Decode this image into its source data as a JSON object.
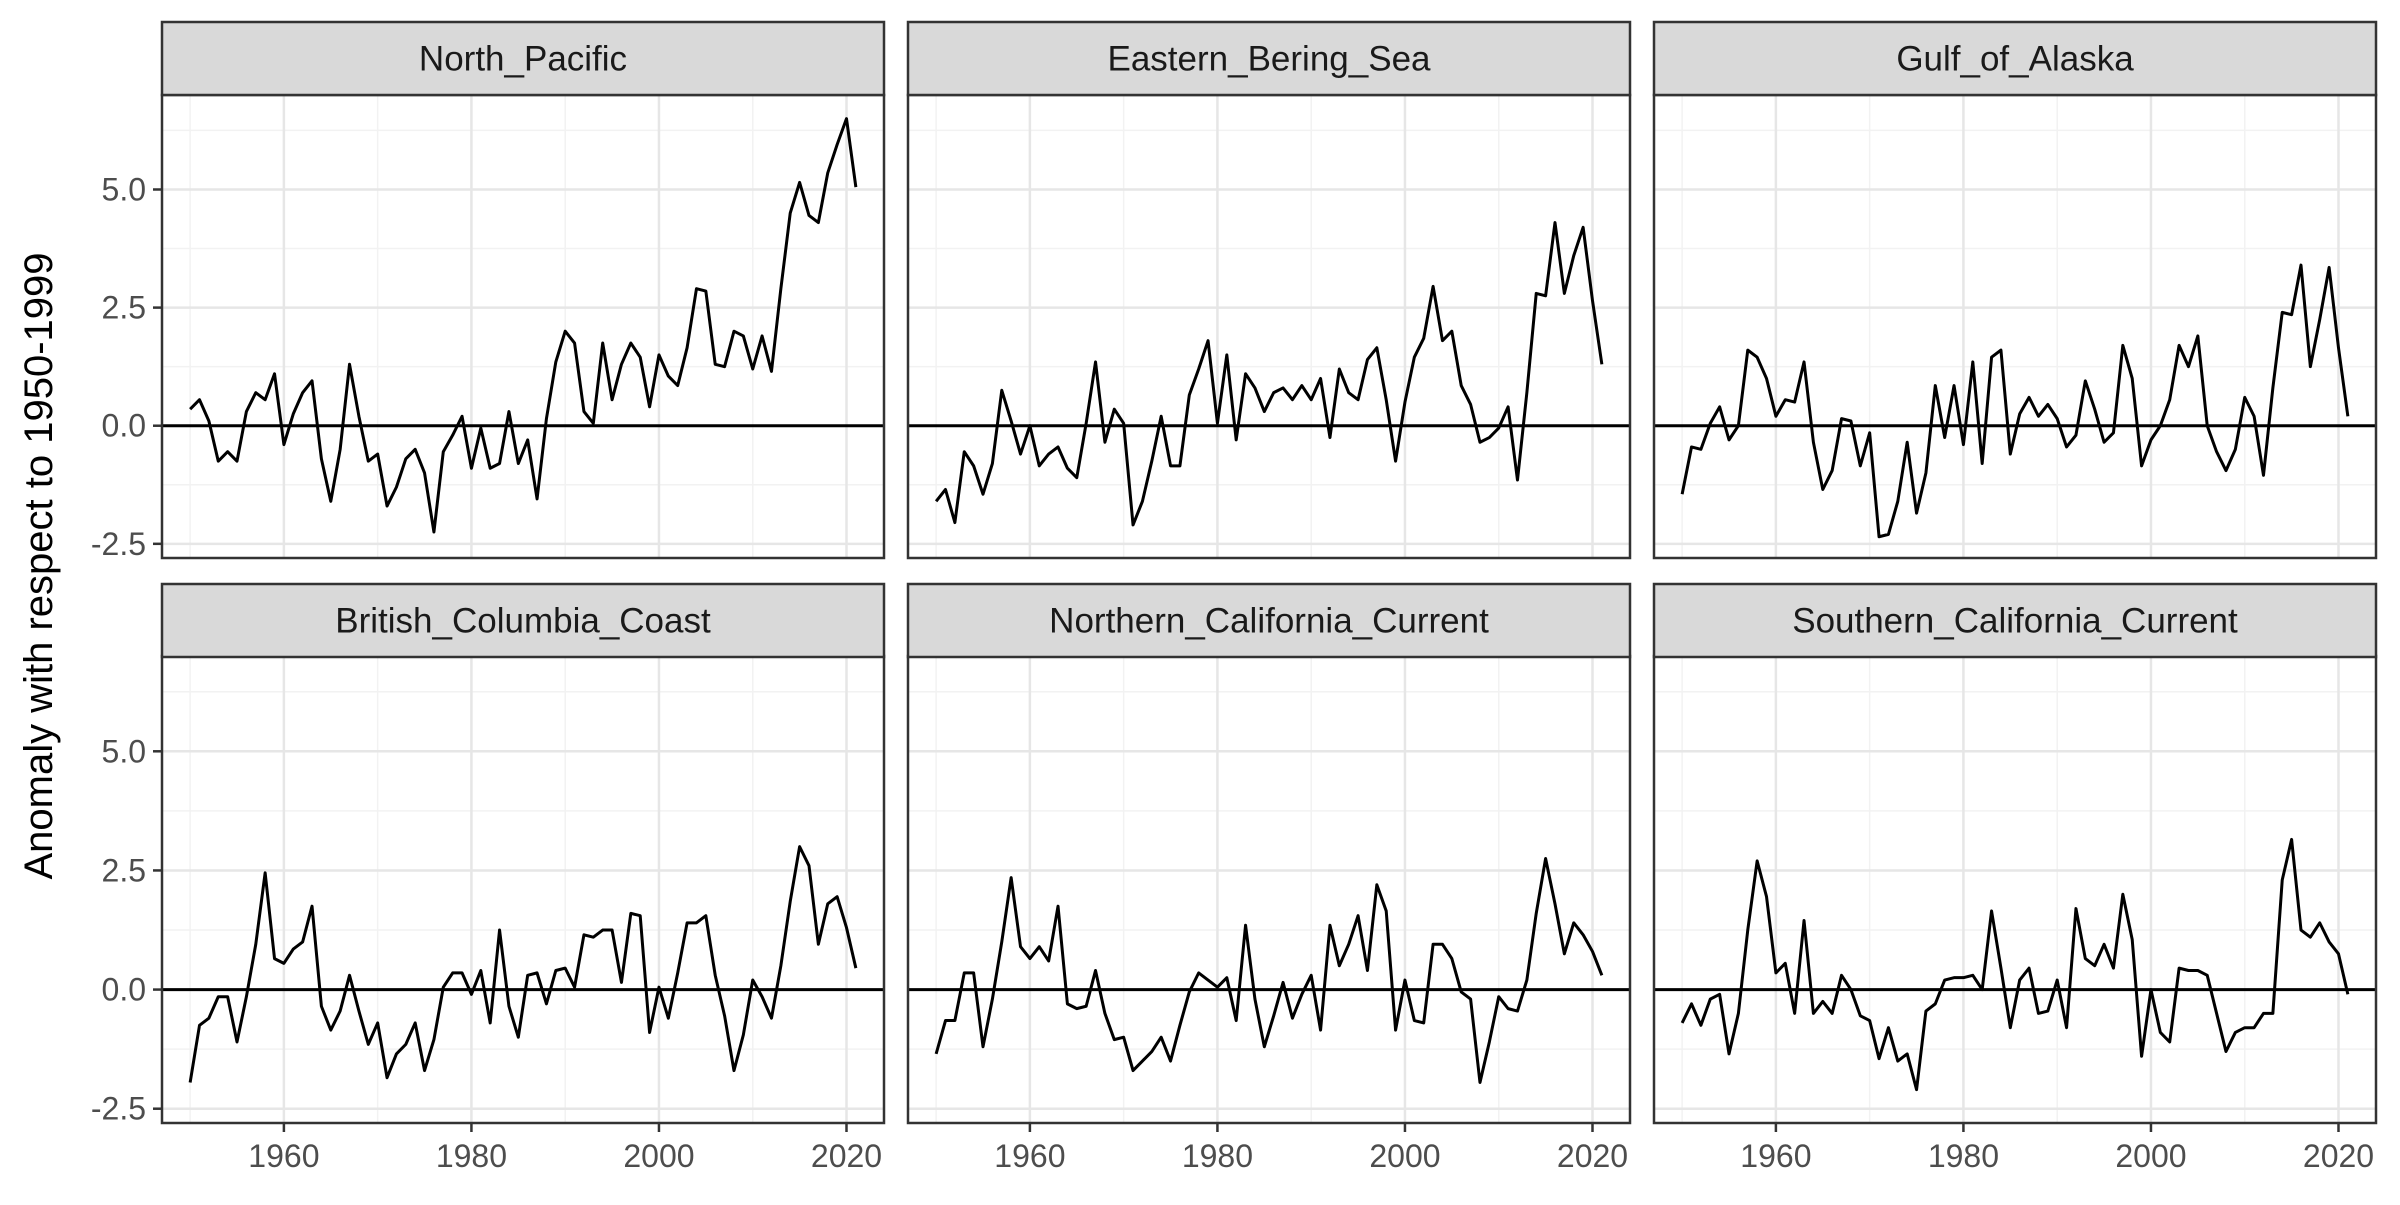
{
  "chart_data": {
    "type": "line",
    "layout": "facet-grid 2x3",
    "ylabel": "Anomaly with respect to 1950-1999",
    "xlabel": "",
    "xlim": [
      1947,
      2024
    ],
    "ylim": [
      -2.8,
      7.0
    ],
    "x_ticks": [
      1960,
      1980,
      2000,
      2020
    ],
    "y_ticks": [
      -2.5,
      0.0,
      2.5,
      5.0
    ],
    "y_tick_labels": [
      "-2.5",
      "0.0",
      "2.5",
      "5.0"
    ],
    "reference_line": 0,
    "grid": true,
    "line_color": "#000000",
    "strip_fill": "#d9d9d9",
    "x_start": 1950,
    "panels": [
      {
        "name": "North_Pacific",
        "values": [
          0.35,
          0.55,
          0.1,
          -0.75,
          -0.55,
          -0.75,
          0.3,
          0.7,
          0.55,
          1.1,
          -0.4,
          0.25,
          0.7,
          0.95,
          -0.7,
          -1.6,
          -0.5,
          1.3,
          0.2,
          -0.75,
          -0.6,
          -1.7,
          -1.3,
          -0.7,
          -0.5,
          -1.0,
          -2.25,
          -0.55,
          -0.2,
          0.2,
          -0.9,
          -0.05,
          -0.9,
          -0.8,
          0.3,
          -0.8,
          -0.3,
          -1.55,
          0.15,
          1.35,
          2.0,
          1.75,
          0.3,
          0.05,
          1.75,
          0.55,
          1.3,
          1.75,
          1.45,
          0.4,
          1.5,
          1.05,
          0.85,
          1.65,
          2.9,
          2.85,
          1.3,
          1.25,
          2.0,
          1.9,
          1.2,
          1.9,
          1.15,
          2.9,
          4.5,
          5.15,
          4.45,
          4.3,
          5.35,
          5.95,
          6.5,
          5.05
        ]
      },
      {
        "name": "Eastern_Bering_Sea",
        "values": [
          -1.6,
          -1.35,
          -2.05,
          -0.55,
          -0.85,
          -1.45,
          -0.8,
          0.75,
          0.1,
          -0.6,
          0.0,
          -0.85,
          -0.6,
          -0.45,
          -0.9,
          -1.1,
          0.05,
          1.35,
          -0.35,
          0.35,
          0.05,
          -2.1,
          -1.6,
          -0.75,
          0.2,
          -0.85,
          -0.85,
          0.65,
          1.2,
          1.8,
          0.05,
          1.5,
          -0.3,
          1.1,
          0.8,
          0.3,
          0.7,
          0.8,
          0.55,
          0.85,
          0.55,
          1.0,
          -0.25,
          1.2,
          0.7,
          0.55,
          1.4,
          1.65,
          0.55,
          -0.75,
          0.5,
          1.45,
          1.85,
          2.95,
          1.8,
          2.0,
          0.85,
          0.45,
          -0.35,
          -0.25,
          -0.05,
          0.4,
          -1.15,
          0.7,
          2.8,
          2.75,
          4.3,
          2.8,
          3.6,
          4.2,
          2.65,
          1.3
        ]
      },
      {
        "name": "Gulf_of_Alaska",
        "values": [
          -1.45,
          -0.45,
          -0.5,
          0.05,
          0.4,
          -0.3,
          0.0,
          1.6,
          1.45,
          1.0,
          0.2,
          0.55,
          0.5,
          1.35,
          -0.35,
          -1.35,
          -0.95,
          0.15,
          0.1,
          -0.85,
          -0.15,
          -2.35,
          -2.3,
          -1.6,
          -0.35,
          -1.85,
          -1.0,
          0.85,
          -0.25,
          0.85,
          -0.4,
          1.35,
          -0.8,
          1.45,
          1.6,
          -0.6,
          0.25,
          0.6,
          0.2,
          0.45,
          0.15,
          -0.45,
          -0.2,
          0.95,
          0.35,
          -0.35,
          -0.15,
          1.7,
          1.0,
          -0.85,
          -0.3,
          0.0,
          0.55,
          1.7,
          1.25,
          1.9,
          0.0,
          -0.55,
          -0.95,
          -0.5,
          0.6,
          0.2,
          -1.05,
          0.8,
          2.4,
          2.35,
          3.4,
          1.25,
          2.25,
          3.35,
          1.65,
          0.2
        ]
      },
      {
        "name": "British_Columbia_Coast",
        "values": [
          -1.95,
          -0.75,
          -0.6,
          -0.15,
          -0.15,
          -1.1,
          -0.15,
          0.95,
          2.45,
          0.65,
          0.55,
          0.85,
          1.0,
          1.75,
          -0.35,
          -0.85,
          -0.45,
          0.3,
          -0.45,
          -1.15,
          -0.7,
          -1.85,
          -1.35,
          -1.15,
          -0.7,
          -1.7,
          -1.05,
          0.05,
          0.35,
          0.35,
          -0.1,
          0.4,
          -0.7,
          1.25,
          -0.35,
          -1.0,
          0.3,
          0.35,
          -0.3,
          0.4,
          0.45,
          0.05,
          1.15,
          1.1,
          1.25,
          1.25,
          0.15,
          1.6,
          1.55,
          -0.9,
          0.05,
          -0.6,
          0.35,
          1.4,
          1.4,
          1.55,
          0.3,
          -0.55,
          -1.7,
          -0.95,
          0.2,
          -0.15,
          -0.6,
          0.5,
          1.85,
          3.0,
          2.6,
          0.95,
          1.8,
          1.95,
          1.3,
          0.45
        ]
      },
      {
        "name": "Northern_California_Current",
        "values": [
          -1.35,
          -0.65,
          -0.65,
          0.35,
          0.35,
          -1.2,
          -0.2,
          1.0,
          2.35,
          0.9,
          0.65,
          0.9,
          0.6,
          1.75,
          -0.3,
          -0.4,
          -0.35,
          0.4,
          -0.5,
          -1.05,
          -1.0,
          -1.7,
          -1.5,
          -1.3,
          -1.0,
          -1.5,
          -0.75,
          -0.05,
          0.35,
          0.2,
          0.05,
          0.25,
          -0.65,
          1.35,
          -0.2,
          -1.2,
          -0.55,
          0.15,
          -0.6,
          -0.1,
          0.3,
          -0.85,
          1.35,
          0.5,
          0.95,
          1.55,
          0.4,
          2.2,
          1.65,
          -0.85,
          0.2,
          -0.65,
          -0.7,
          0.95,
          0.95,
          0.65,
          -0.05,
          -0.2,
          -1.95,
          -1.1,
          -0.15,
          -0.4,
          -0.45,
          0.2,
          1.6,
          2.75,
          1.8,
          0.75,
          1.4,
          1.15,
          0.8,
          0.3
        ]
      },
      {
        "name": "Southern_California_Current",
        "values": [
          -0.7,
          -0.3,
          -0.75,
          -0.2,
          -0.1,
          -1.35,
          -0.5,
          1.25,
          2.7,
          1.95,
          0.35,
          0.55,
          -0.5,
          1.45,
          -0.5,
          -0.25,
          -0.5,
          0.3,
          0.0,
          -0.55,
          -0.65,
          -1.45,
          -0.8,
          -1.5,
          -1.35,
          -2.1,
          -0.45,
          -0.3,
          0.2,
          0.25,
          0.25,
          0.3,
          0.0,
          1.65,
          0.45,
          -0.8,
          0.2,
          0.45,
          -0.5,
          -0.45,
          0.2,
          -0.8,
          1.7,
          0.65,
          0.5,
          0.95,
          0.45,
          2.0,
          1.05,
          -1.4,
          0.0,
          -0.9,
          -1.1,
          0.45,
          0.4,
          0.4,
          0.3,
          -0.5,
          -1.3,
          -0.9,
          -0.8,
          -0.8,
          -0.5,
          -0.5,
          2.3,
          3.15,
          1.25,
          1.1,
          1.4,
          1.0,
          0.75,
          -0.1
        ]
      }
    ]
  }
}
